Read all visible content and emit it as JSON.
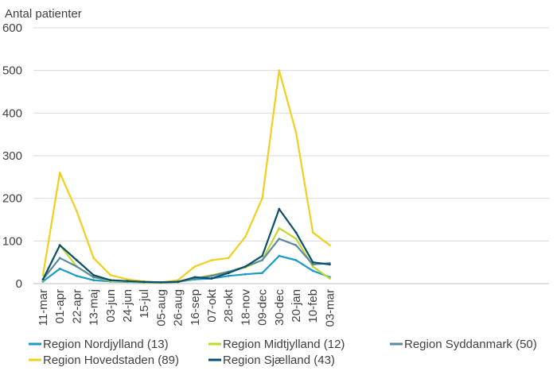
{
  "chart_data": {
    "type": "line",
    "ylabel": "Antal patienter",
    "xlabel": "",
    "ylim": [
      0,
      600
    ],
    "yticks": [
      0,
      100,
      200,
      300,
      400,
      500,
      600
    ],
    "grid": "horizontal",
    "legend_position": "bottom",
    "x_categories": [
      "11-mar",
      "01-apr",
      "22-apr",
      "13-maj",
      "03-jun",
      "24-jun",
      "15-jul",
      "05-aug",
      "26-aug",
      "16-sep",
      "07-okt",
      "28-okt",
      "18-nov",
      "09-dec",
      "30-dec",
      "20-jan",
      "10-feb",
      "03-mar"
    ],
    "x": [
      "11-mar",
      "01-apr",
      "22-apr",
      "13-maj",
      "03-jun",
      "24-jun",
      "15-jul",
      "05-aug",
      "26-aug",
      "16-sep",
      "07-okt",
      "28-okt",
      "18-nov",
      "09-dec",
      "30-dec",
      "20-jan",
      "10-feb",
      "03-mar"
    ],
    "series": [
      {
        "name": "Region Nordjylland (13)",
        "color": "#1A9BC7",
        "values": [
          5,
          35,
          18,
          8,
          5,
          4,
          3,
          3,
          4,
          10,
          12,
          18,
          22,
          25,
          65,
          55,
          30,
          15
        ]
      },
      {
        "name": "Region Midtjylland (12)",
        "color": "#C3D82C",
        "values": [
          8,
          90,
          40,
          15,
          6,
          5,
          3,
          2,
          4,
          12,
          20,
          28,
          38,
          55,
          130,
          105,
          40,
          12
        ]
      },
      {
        "name": "Region Syddanmark (50)",
        "color": "#5B8A9E",
        "values": [
          10,
          60,
          40,
          15,
          8,
          6,
          4,
          3,
          5,
          12,
          18,
          28,
          40,
          55,
          105,
          90,
          45,
          48
        ]
      },
      {
        "name": "Region Hovedstaden (89)",
        "color": "#F2CE1E",
        "values": [
          20,
          260,
          170,
          60,
          20,
          10,
          5,
          3,
          8,
          40,
          55,
          60,
          110,
          200,
          500,
          355,
          120,
          90
        ]
      },
      {
        "name": "Region Sjælland (43)",
        "color": "#0B4F6C",
        "values": [
          10,
          90,
          55,
          20,
          8,
          6,
          4,
          3,
          4,
          15,
          12,
          25,
          40,
          65,
          175,
          120,
          50,
          45
        ]
      }
    ]
  }
}
